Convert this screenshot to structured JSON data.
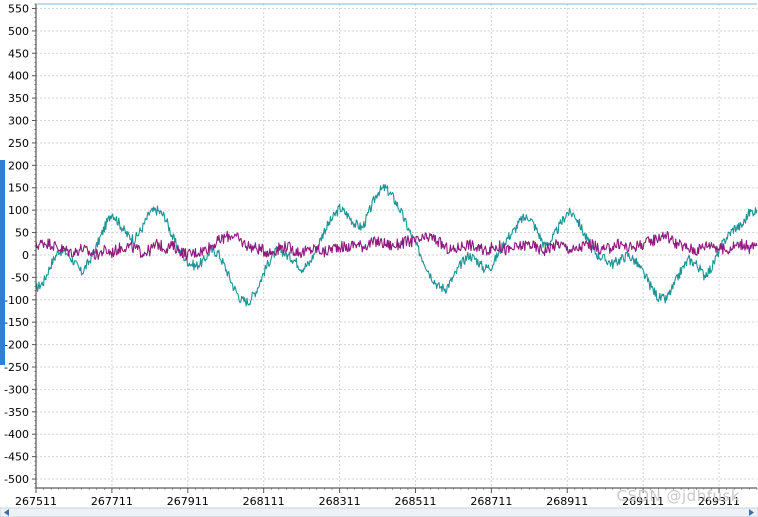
{
  "chart_data": {
    "type": "line",
    "title": "",
    "xlabel": "",
    "ylabel": "",
    "xlim": [
      267511,
      269411
    ],
    "ylim": [
      -520,
      560
    ],
    "yticks": [
      -500,
      -450,
      -400,
      -350,
      -300,
      -250,
      -200,
      -150,
      -100,
      -50,
      0,
      50,
      100,
      150,
      200,
      250,
      300,
      350,
      400,
      450,
      500,
      550
    ],
    "xticks": [
      267511,
      267711,
      267911,
      268111,
      268311,
      268511,
      268711,
      268911,
      269111,
      269311
    ],
    "grid": true,
    "legend": "none",
    "series": [
      {
        "color": "#1a9494",
        "x": [
          267511,
          267531,
          267551,
          267571,
          267591,
          267611,
          267631,
          267651,
          267671,
          267691,
          267711,
          267731,
          267751,
          267771,
          267791,
          267811,
          267831,
          267851,
          267871,
          267891,
          267911,
          267931,
          267951,
          267971,
          267991,
          268011,
          268031,
          268051,
          268071,
          268091,
          268111,
          268131,
          268151,
          268171,
          268191,
          268211,
          268231,
          268251,
          268271,
          268291,
          268311,
          268331,
          268351,
          268371,
          268391,
          268411,
          268431,
          268451,
          268471,
          268491,
          268511,
          268531,
          268551,
          268571,
          268591,
          268611,
          268631,
          268651,
          268671,
          268691,
          268711,
          268731,
          268751,
          268771,
          268791,
          268811,
          268831,
          268851,
          268871,
          268891,
          268911,
          268931,
          268951,
          268971,
          268991,
          269011,
          269031,
          269051,
          269071,
          269091,
          269111,
          269131,
          269151,
          269171,
          269191,
          269211,
          269231,
          269251,
          269271,
          269291,
          269311,
          269331,
          269351,
          269371,
          269391,
          269411
        ],
        "y": [
          -75,
          -60,
          -20,
          10,
          5,
          -15,
          -40,
          -15,
          20,
          60,
          95,
          70,
          45,
          35,
          60,
          95,
          100,
          85,
          40,
          5,
          -15,
          -25,
          -15,
          10,
          5,
          -30,
          -70,
          -100,
          -105,
          -80,
          -40,
          -5,
          15,
          0,
          -10,
          -30,
          -20,
          15,
          55,
          80,
          105,
          90,
          70,
          60,
          100,
          140,
          150,
          130,
          100,
          60,
          25,
          -10,
          -45,
          -70,
          -75,
          -50,
          -20,
          0,
          -10,
          -30,
          -25,
          5,
          35,
          55,
          80,
          85,
          55,
          20,
          35,
          65,
          95,
          90,
          55,
          20,
          0,
          -10,
          -20,
          -10,
          0,
          -15,
          -40,
          -70,
          -95,
          -100,
          -70,
          -35,
          -10,
          -20,
          -45,
          -30,
          10,
          40,
          60,
          65,
          95,
          100
        ]
      },
      {
        "color": "#8e1a7e",
        "x": [
          267511,
          267531,
          267551,
          267571,
          267591,
          267611,
          267631,
          267651,
          267671,
          267691,
          267711,
          267731,
          267751,
          267771,
          267791,
          267811,
          267831,
          267851,
          267871,
          267891,
          267911,
          267931,
          267951,
          267971,
          267991,
          268011,
          268031,
          268051,
          268071,
          268091,
          268111,
          268131,
          268151,
          268171,
          268191,
          268211,
          268231,
          268251,
          268271,
          268291,
          268311,
          268331,
          268351,
          268371,
          268391,
          268411,
          268431,
          268451,
          268471,
          268491,
          268511,
          268531,
          268551,
          268571,
          268591,
          268611,
          268631,
          268651,
          268671,
          268691,
          268711,
          268731,
          268751,
          268771,
          268791,
          268811,
          268831,
          268851,
          268871,
          268891,
          268911,
          268931,
          268951,
          268971,
          268991,
          269011,
          269031,
          269051,
          269071,
          269091,
          269111,
          269131,
          269151,
          269171,
          269191,
          269211,
          269231,
          269251,
          269271,
          269291,
          269311,
          269331,
          269351,
          269371,
          269391,
          269411
        ],
        "y": [
          20,
          28,
          25,
          15,
          10,
          5,
          15,
          5,
          0,
          10,
          5,
          15,
          20,
          15,
          5,
          10,
          25,
          15,
          20,
          10,
          0,
          5,
          10,
          20,
          30,
          40,
          45,
          30,
          20,
          15,
          10,
          5,
          15,
          20,
          10,
          5,
          10,
          15,
          5,
          15,
          20,
          15,
          25,
          20,
          25,
          30,
          25,
          20,
          25,
          30,
          30,
          35,
          40,
          30,
          15,
          10,
          20,
          25,
          15,
          10,
          15,
          20,
          10,
          15,
          20,
          25,
          15,
          10,
          20,
          25,
          15,
          10,
          20,
          25,
          15,
          10,
          20,
          25,
          15,
          20,
          25,
          30,
          40,
          45,
          30,
          20,
          15,
          10,
          20,
          25,
          15,
          10,
          20,
          25,
          15,
          20
        ]
      }
    ]
  },
  "watermark": "CSDN @jdhfusk"
}
